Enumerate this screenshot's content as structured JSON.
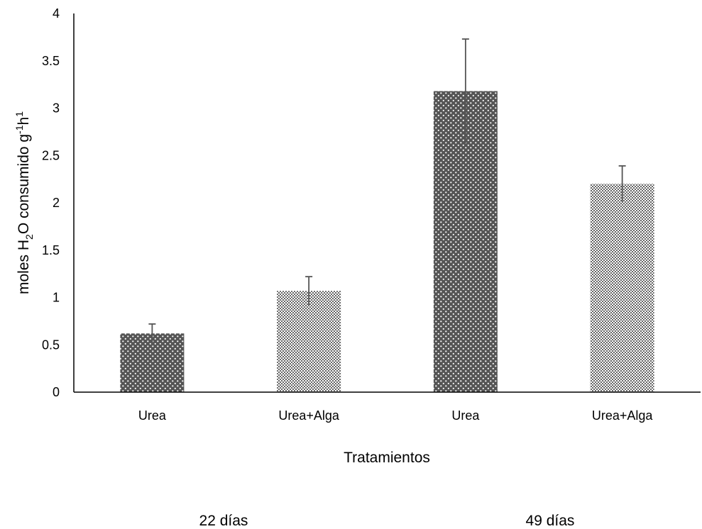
{
  "chart_data": {
    "type": "bar",
    "categories": [
      "Urea",
      "Urea+Alga",
      "Urea",
      "Urea+Alga"
    ],
    "values": [
      0.62,
      1.07,
      3.18,
      2.2
    ],
    "error_plus": [
      0.1,
      0.15,
      0.55,
      0.19
    ],
    "error_minus": [
      0.1,
      0.15,
      0.55,
      0.19
    ],
    "patterns": [
      "dots-on-dark",
      "checker",
      "dots-on-dark",
      "checker"
    ],
    "groups": [
      {
        "label": "22 días",
        "categories": [
          0,
          1
        ]
      },
      {
        "label": "49 días",
        "categories": [
          2,
          3
        ]
      }
    ],
    "xlabel": "Tratamientos",
    "ylabel": {
      "pre": "moles H",
      "sub": "2",
      "mid": "O consumido g",
      "sup1": "-1",
      "mid2": "h",
      "sup2": "1"
    },
    "ylim": [
      0,
      4
    ],
    "yticks": [
      0,
      0.5,
      1,
      1.5,
      2,
      2.5,
      3,
      3.5,
      4
    ],
    "ytick_labels": [
      "0",
      "0.5",
      "1",
      "1.5",
      "2",
      "2.5",
      "3",
      "3.5",
      "4"
    ],
    "grid": false,
    "colors": {
      "bar_dark": "#555555",
      "bar_light": "#ffffff",
      "axis": "#000000",
      "error": "#555555"
    }
  }
}
